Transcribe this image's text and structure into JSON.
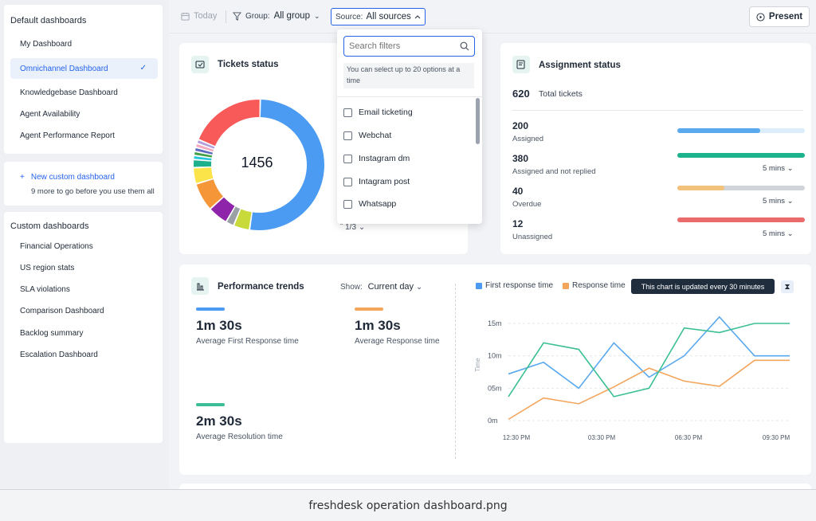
{
  "sidebar": {
    "default_heading": "Default dashboards",
    "default_items": [
      "My Dashboard",
      "Omnichannel Dashboard",
      "Knowledgebase Dashboard",
      "Agent Availability",
      "Agent Performance Report"
    ],
    "active_index": 1,
    "new_custom": "New custom dashboard",
    "new_custom_sub": "9 more to go before you use them all",
    "custom_heading": "Custom dashboards",
    "custom_items": [
      "Financial Operations",
      "US region stats",
      "SLA violations",
      "Comparison Dashboard",
      "Backlog summary",
      "Escalation Dashboard"
    ]
  },
  "topbar": {
    "today": "Today",
    "group_label": "Group:",
    "group_value": "All group",
    "source_label": "Source:",
    "source_value": "All sources",
    "present": "Present"
  },
  "tickets": {
    "title": "Tickets status",
    "total": "1456",
    "pager": "1/3",
    "segments": [
      {
        "value": 52,
        "color": "#4b9bf2"
      },
      {
        "value": 4,
        "color": "#c8d93a"
      },
      {
        "value": 2,
        "color": "#9aa0a6"
      },
      {
        "value": 5,
        "color": "#8e24aa"
      },
      {
        "value": 7,
        "color": "#f59638"
      },
      {
        "value": 4,
        "color": "#fbe34a"
      },
      {
        "value": 2,
        "color": "#1db08c"
      },
      {
        "value": 1,
        "color": "#26c6da"
      },
      {
        "value": 1,
        "color": "#43a047"
      },
      {
        "value": 1,
        "color": "#5c6bc0"
      },
      {
        "value": 1,
        "color": "#f4a9c0"
      },
      {
        "value": 1,
        "color": "#b39ddb"
      },
      {
        "value": 19,
        "color": "#f85a5a"
      }
    ]
  },
  "dropdown": {
    "search_placeholder": "Search filters",
    "hint": "You can select up to 20 options at a time",
    "options": [
      "Email ticketing",
      "Webchat",
      "Instagram dm",
      "Intagram post",
      "Whatsapp"
    ]
  },
  "assignment": {
    "title": "Assignment status",
    "total_num": "620",
    "total_label": "Total tickets",
    "rows": [
      {
        "num": "200",
        "label": "Assigned",
        "fill": 0.65,
        "color": "#5aa9ee",
        "track": "#dceefc",
        "mins": ""
      },
      {
        "num": "380",
        "label": "Assigned and not replied",
        "fill": 1.0,
        "color": "#1db38c",
        "track": "#d1d5db",
        "mins": "5 mins"
      },
      {
        "num": "40",
        "label": "Overdue",
        "fill": 0.37,
        "color": "#f3c27a",
        "track": "#d1d5db",
        "mins": "5 mins"
      },
      {
        "num": "12",
        "label": "Unassigned",
        "fill": 1.0,
        "color": "#ea6b6b",
        "track": "#d1d5db",
        "mins": "5 mins"
      }
    ]
  },
  "performance": {
    "title": "Performance trends",
    "show_label": "Show:",
    "show_value": "Current day",
    "metrics": [
      {
        "value": "1m 30s",
        "label": "Average First Response time",
        "color": "#4b9bf2"
      },
      {
        "value": "1m 30s",
        "label": "Average Response time",
        "color": "#f3a55c"
      },
      {
        "value": "2m 30s",
        "label": "Average Resolution time",
        "color": "#3cbf96"
      }
    ],
    "tooltip": "This chart is updated every 30 minutes"
  },
  "chart_data": {
    "type": "line",
    "ylabel": "Time",
    "yticks": [
      "15m",
      "10m",
      "05m",
      "0m"
    ],
    "ylim": [
      0,
      15
    ],
    "xticks": [
      "12:30 PM",
      "03:30 PM",
      "06:30 PM",
      "09:30 PM"
    ],
    "x": [
      0,
      1,
      2,
      3,
      4,
      5,
      6,
      7,
      8
    ],
    "series": [
      {
        "name": "First response time",
        "color": "#5aa9ee",
        "values": [
          7.2,
          9.0,
          5.0,
          12.0,
          6.7,
          10.0,
          16.0,
          10.0,
          10.0
        ]
      },
      {
        "name": "Response time",
        "color": "#f3a55c",
        "values": [
          0.2,
          3.5,
          2.6,
          5.2,
          8.1,
          6.1,
          5.3,
          9.3,
          9.3
        ]
      },
      {
        "name": "",
        "color": "#3cbf96",
        "values": [
          3.7,
          12.0,
          11.0,
          3.7,
          5.0,
          14.3,
          13.6,
          15.0,
          15.0
        ]
      }
    ]
  },
  "caption": "freshdesk operation dashboard.png"
}
